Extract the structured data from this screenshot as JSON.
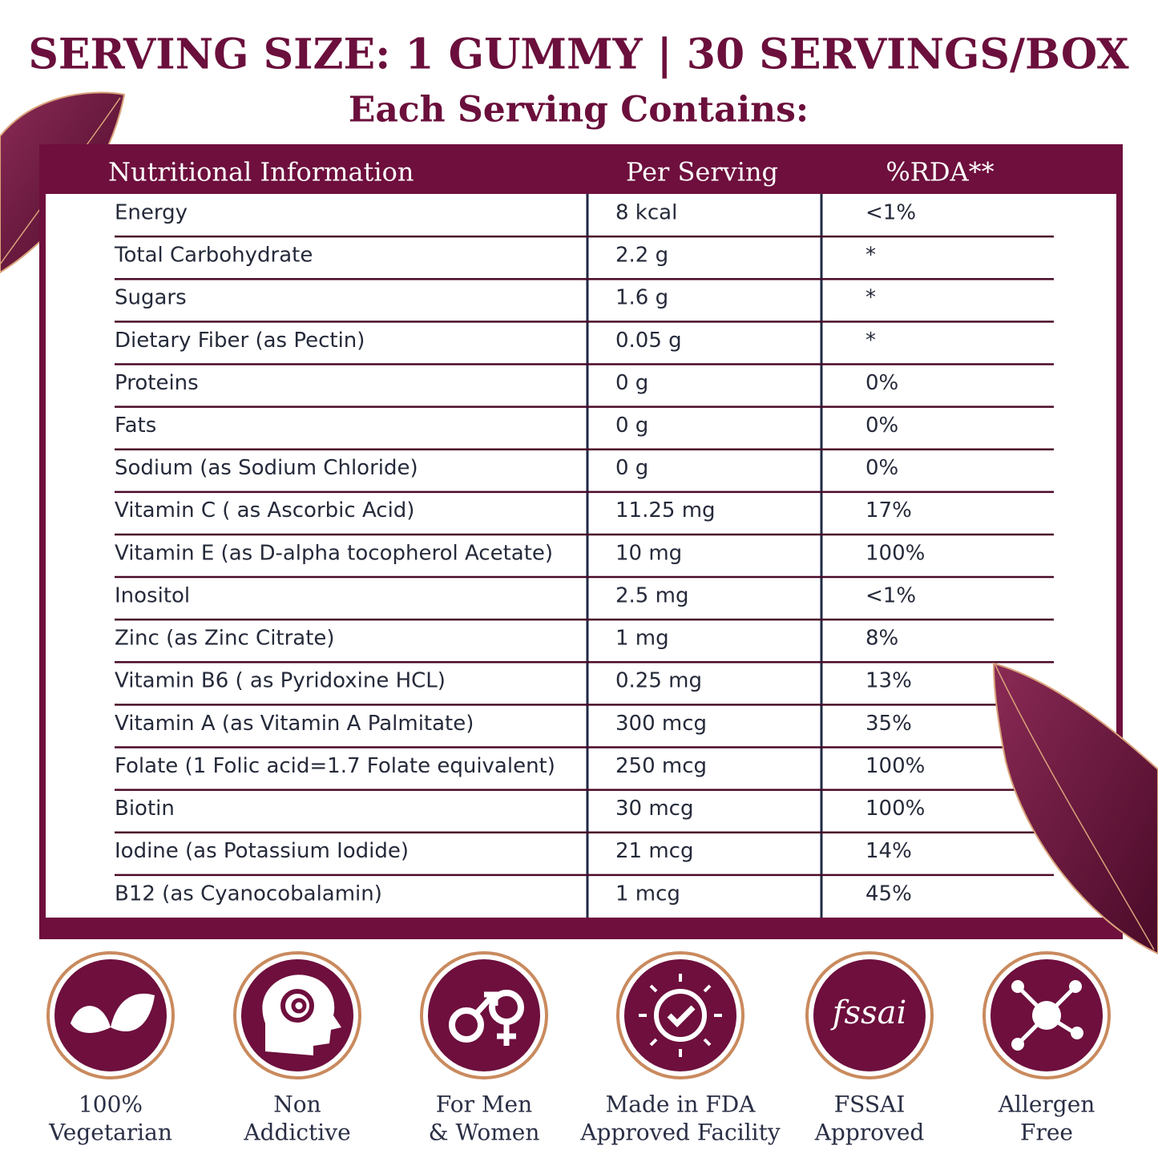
{
  "header": {
    "title": "SERVING SIZE: 1 GUMMY | 30 SERVINGS/BOX",
    "subtitle": "Each Serving Contains:"
  },
  "table": {
    "columns": [
      "Nutritional Information",
      "Per Serving",
      "%RDA**"
    ],
    "rows": [
      [
        "Energy",
        "8 kcal",
        "<1%"
      ],
      [
        "Total Carbohydrate",
        "2.2 g",
        "*"
      ],
      [
        "Sugars",
        "1.6 g",
        "*"
      ],
      [
        "Dietary Fiber (as Pectin)",
        "0.05 g",
        "*"
      ],
      [
        "Proteins",
        "0 g",
        "0%"
      ],
      [
        "Fats",
        "0 g",
        "0%"
      ],
      [
        "Sodium (as Sodium Chloride)",
        "0 g",
        "0%"
      ],
      [
        "Vitamin C ( as Ascorbic Acid)",
        "11.25 mg",
        "17%"
      ],
      [
        "Vitamin E (as D-alpha tocopherol Acetate)",
        "10 mg",
        "100%"
      ],
      [
        "Inositol",
        "2.5 mg",
        "<1%"
      ],
      [
        "Zinc (as Zinc Citrate)",
        "1 mg",
        "8%"
      ],
      [
        "Vitamin B6 ( as Pyridoxine HCL)",
        "0.25 mg",
        "13%"
      ],
      [
        "Vitamin A (as Vitamin A Palmitate)",
        "300 mcg",
        "35%"
      ],
      [
        "Folate (1 Folic acid=1.7 Folate equivalent)",
        "250 mcg",
        "100%"
      ],
      [
        "Biotin",
        "30 mcg",
        "100%"
      ],
      [
        "Iodine (as Potassium Iodide)",
        "21 mcg",
        "14%"
      ],
      [
        "B12 (as Cyanocobalamin)",
        "1 mcg",
        "45%"
      ]
    ]
  },
  "badges": [
    {
      "lines": [
        "100%",
        "Vegetarian"
      ]
    },
    {
      "lines": [
        "Non",
        "Addictive"
      ]
    },
    {
      "lines": [
        "For Men",
        "& Women"
      ]
    },
    {
      "lines": [
        "Made in FDA",
        "Approved Facility"
      ]
    },
    {
      "icon_text": "fssai",
      "lines": [
        "FSSAI",
        "Approved"
      ]
    },
    {
      "lines": [
        "Allergen",
        "Free"
      ]
    }
  ]
}
